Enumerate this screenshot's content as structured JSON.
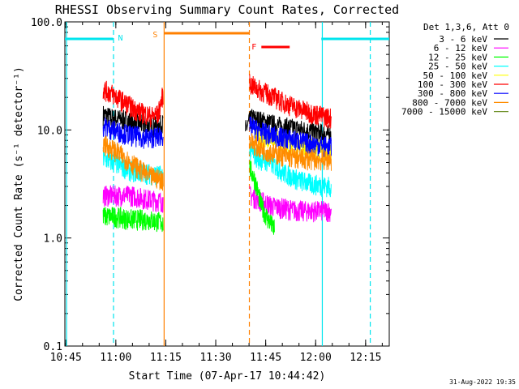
{
  "chart_data": {
    "type": "line",
    "title": "RHESSI Observing Summary Count Rates, Corrected",
    "xlabel": "Start Time (07-Apr-17 10:44:42)",
    "ylabel": "Corrected Count Rate (s⁻¹ detector⁻¹)",
    "x_unit": "minutes since 10:44:42",
    "xlim": [
      0,
      97.4
    ],
    "ylim": [
      0.1,
      100
    ],
    "yscale": "log",
    "x_ticks": [
      {
        "x": 0.3,
        "label": "10:45"
      },
      {
        "x": 15.3,
        "label": "11:00"
      },
      {
        "x": 30.3,
        "label": "11:15"
      },
      {
        "x": 45.3,
        "label": "11:30"
      },
      {
        "x": 60.3,
        "label": "11:45"
      },
      {
        "x": 75.3,
        "label": "12:00"
      },
      {
        "x": 90.3,
        "label": "12:15"
      }
    ],
    "y_ticks": [
      {
        "y": 0.1,
        "label": "0.1"
      },
      {
        "y": 1,
        "label": "1.0"
      },
      {
        "y": 10,
        "label": "10.0"
      },
      {
        "y": 100,
        "label": "100.0"
      }
    ],
    "legend_title": "Det 1,3,6, Att 0",
    "series": [
      {
        "name": "3 - 6 keV",
        "color": "#000000",
        "segments": [
          [
            [
              11.5,
              14
            ],
            [
              14,
              13
            ],
            [
              18,
              12.5
            ],
            [
              22,
              11.5
            ],
            [
              26,
              10.8
            ],
            [
              28,
              11
            ],
            [
              29.5,
              11.5
            ]
          ],
          [
            [
              54.2,
              10
            ],
            [
              56,
              13
            ],
            [
              60,
              12
            ],
            [
              64,
              11
            ],
            [
              68,
              10.5
            ],
            [
              72,
              10
            ],
            [
              76,
              9.5
            ],
            [
              80,
              9
            ]
          ]
        ]
      },
      {
        "name": "6 - 12 keV",
        "color": "#ff00ff",
        "segments": [
          [
            [
              11.5,
              2.5
            ],
            [
              15,
              2.5
            ],
            [
              20,
              2.5
            ],
            [
              25,
              2.3
            ],
            [
              29.5,
              2.2
            ]
          ],
          [
            [
              55.5,
              2.5
            ],
            [
              58,
              2.3
            ],
            [
              62,
              2
            ],
            [
              66,
              1.9
            ],
            [
              70,
              1.8
            ],
            [
              74,
              1.8
            ],
            [
              80,
              1.8
            ]
          ]
        ]
      },
      {
        "name": "12 - 25 keV",
        "color": "#00ff00",
        "segments": [
          [
            [
              11.5,
              1.6
            ],
            [
              15,
              1.6
            ],
            [
              20,
              1.5
            ],
            [
              25,
              1.5
            ],
            [
              29.5,
              1.4
            ]
          ],
          [
            [
              55.5,
              4.5
            ],
            [
              57,
              3.5
            ],
            [
              59,
              2
            ],
            [
              61,
              1.5
            ],
            [
              63,
              1.2
            ]
          ]
        ]
      },
      {
        "name": "25 - 50 keV",
        "color": "#00ffff",
        "segments": [
          [
            [
              11.5,
              5.5
            ],
            [
              15,
              5
            ],
            [
              20,
              4.2
            ],
            [
              25,
              4
            ],
            [
              29.5,
              3.8
            ]
          ],
          [
            [
              55.5,
              6.5
            ],
            [
              58,
              5.5
            ],
            [
              62,
              5
            ],
            [
              66,
              4
            ],
            [
              70,
              3.5
            ],
            [
              74,
              3.2
            ],
            [
              80,
              3
            ]
          ]
        ]
      },
      {
        "name": "50 - 100 keV",
        "color": "#ffff00",
        "segments": [
          [
            [
              57,
              9
            ],
            [
              62,
              8.5
            ],
            [
              70,
              7
            ],
            [
              80,
              6.5
            ]
          ]
        ]
      },
      {
        "name": "100 - 300 keV",
        "color": "#ff0000",
        "segments": [
          [
            [
              11.5,
              24
            ],
            [
              14,
              22
            ],
            [
              18,
              18
            ],
            [
              22,
              15
            ],
            [
              26,
              13.5
            ],
            [
              28,
              14
            ],
            [
              29.5,
              22
            ]
          ],
          [
            [
              55.5,
              27
            ],
            [
              58,
              24
            ],
            [
              62,
              21
            ],
            [
              66,
              18
            ],
            [
              70,
              16
            ],
            [
              74,
              14.5
            ],
            [
              80,
              13
            ]
          ]
        ]
      },
      {
        "name": "300 - 800 keV",
        "color": "#0000ff",
        "segments": [
          [
            [
              11.5,
              11
            ],
            [
              15,
              10
            ],
            [
              20,
              9
            ],
            [
              25,
              8.5
            ],
            [
              29.5,
              9
            ]
          ],
          [
            [
              55.5,
              11
            ],
            [
              58,
              10
            ],
            [
              62,
              9
            ],
            [
              66,
              8.5
            ],
            [
              70,
              8
            ],
            [
              74,
              7.5
            ],
            [
              80,
              7
            ]
          ]
        ]
      },
      {
        "name": "800 - 7000 keV",
        "color": "#ff8c00",
        "segments": [
          [
            [
              11.5,
              7.5
            ],
            [
              15,
              6.5
            ],
            [
              20,
              5
            ],
            [
              25,
              3.8
            ],
            [
              29.5,
              3.5
            ]
          ],
          [
            [
              55.5,
              8
            ],
            [
              58,
              7
            ],
            [
              62,
              6.2
            ],
            [
              66,
              5.8
            ],
            [
              70,
              5.5
            ],
            [
              74,
              5.4
            ],
            [
              80,
              5.3
            ]
          ]
        ]
      },
      {
        "name": "7000 - 15000 keV",
        "color": "#6b8e23",
        "segments": []
      }
    ],
    "markers": {
      "night": {
        "label": "N",
        "color": "#00e5ee",
        "intervals": [
          [
            0,
            14.5
          ],
          [
            77,
            97.4
          ]
        ],
        "boundaries": [
          0.5,
          14.6,
          77.3,
          91.7
        ]
      },
      "saa": {
        "label": "S",
        "color": "#ff8000",
        "intervals": [
          [
            29.8,
            55.4
          ]
        ],
        "boundaries": [
          29.8,
          55.4
        ]
      },
      "flare": {
        "label": "F",
        "color": "#ff0000",
        "intervals": [
          [
            59,
            67.5
          ]
        ]
      }
    }
  },
  "footer": {
    "timestamp": "31-Aug-2022 19:35"
  }
}
